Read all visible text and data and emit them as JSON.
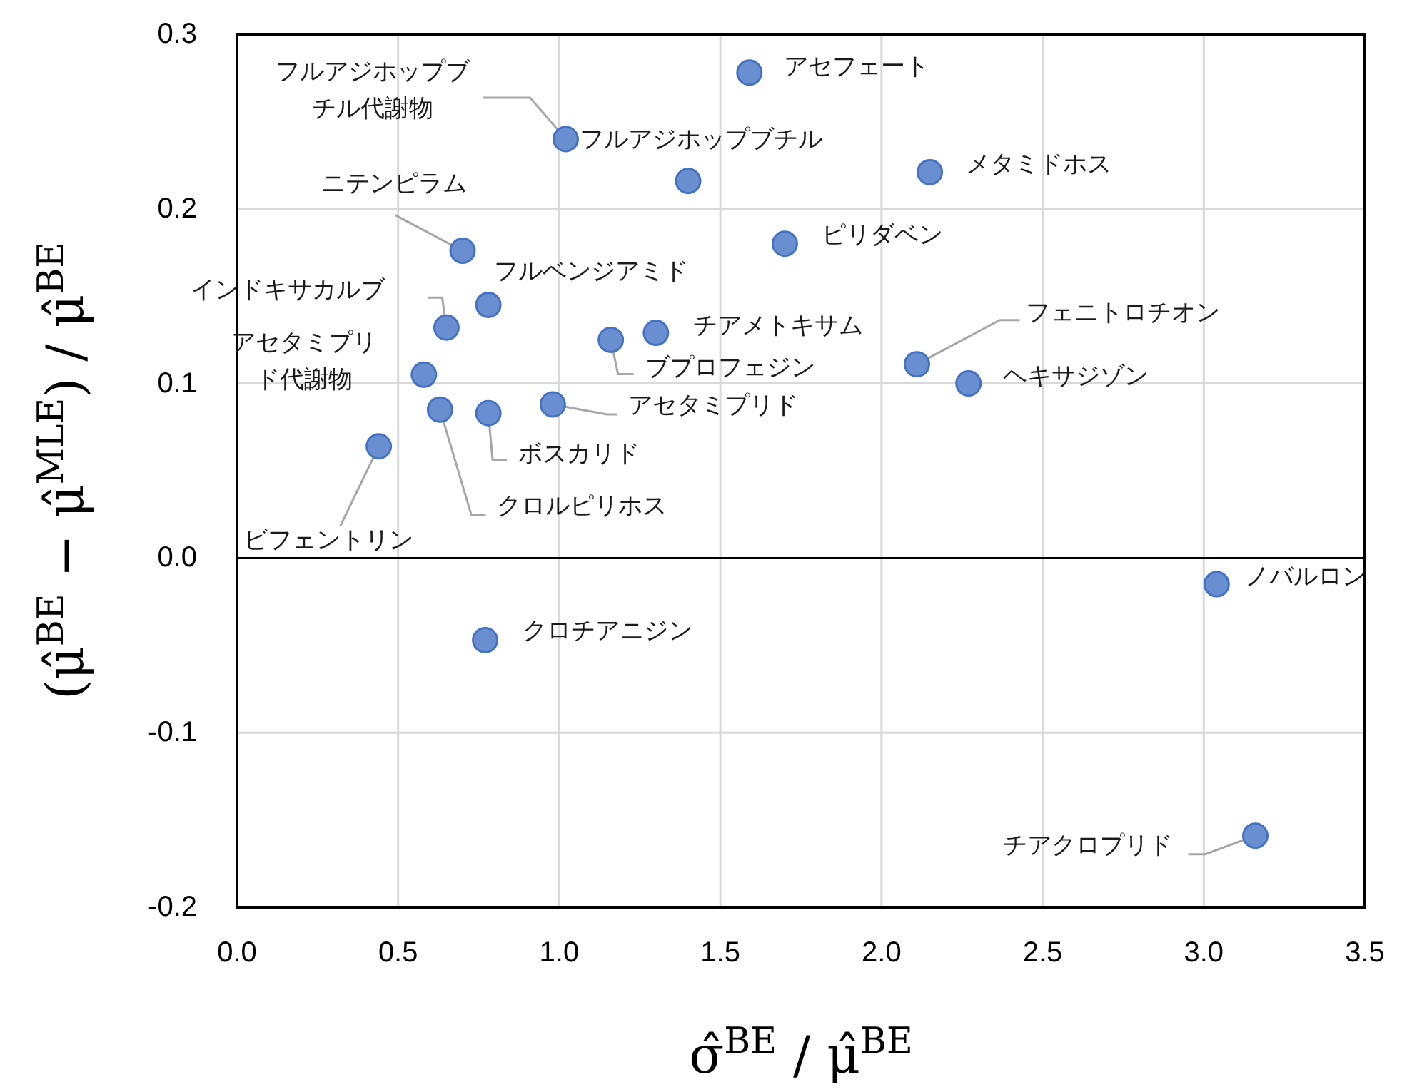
{
  "chart_data": {
    "type": "scatter",
    "xlabel": "σ̂$^{BE}$ / μ̂$^{BE}$",
    "ylabel": "(μ̂$^{BE}$ − μ̂$^{MLE}$) / μ̂$^{BE}$",
    "xlim": [
      0,
      3.5
    ],
    "xticks": [
      {
        "value": 0,
        "label": "0.0"
      },
      0.5,
      {
        "value": 1,
        "label": "1.0"
      },
      1.5,
      {
        "value": 2,
        "label": "2.0"
      },
      2.5,
      {
        "value": 3,
        "label": "3.0"
      },
      3.5
    ],
    "ylim": [
      -0.2,
      0.3
    ],
    "yticks": [
      -0.2,
      -0.1,
      {
        "value": 0,
        "label": "0.0"
      },
      0.1,
      0.2,
      0.3
    ],
    "grid": true,
    "marker": "circle",
    "series": [
      {
        "color": "#6a8fd0",
        "x": [
          1.59,
          1.02,
          1.4,
          2.15,
          1.7,
          0.7,
          0.78,
          0.65,
          1.16,
          1.3,
          2.11,
          2.27,
          0.58,
          0.63,
          0.78,
          0.98,
          0.44,
          3.04,
          0.77,
          3.16
        ],
        "values": [
          0.278,
          0.24,
          0.216,
          0.221,
          0.18,
          0.176,
          0.145,
          0.132,
          0.125,
          0.129,
          0.111,
          0.1,
          0.105,
          0.085,
          0.083,
          0.088,
          0.064,
          -0.015,
          -0.047,
          -0.159
        ]
      }
    ],
    "annotations": [
      {
        "text": "アセフェート",
        "x": 1.59,
        "y": 0.278
      },
      {
        "text": "フルアジホップブチル代謝物",
        "x": 1.02,
        "y": 0.24
      },
      {
        "text": "フルアジホップブチル",
        "x": 1.4,
        "y": 0.216
      },
      {
        "text": "メタミドホス",
        "x": 2.15,
        "y": 0.221
      },
      {
        "text": "ピリダベン",
        "x": 1.7,
        "y": 0.18
      },
      {
        "text": "ニテンピラム",
        "x": 0.7,
        "y": 0.176
      },
      {
        "text": "フルベンジアミド",
        "x": 0.78,
        "y": 0.145
      },
      {
        "text": "インドキサカルブ",
        "x": 0.65,
        "y": 0.132
      },
      {
        "text": "ブプロフェジン",
        "x": 1.16,
        "y": 0.125
      },
      {
        "text": "チアメトキサム",
        "x": 1.3,
        "y": 0.129
      },
      {
        "text": "フェニトロチオン",
        "x": 2.11,
        "y": 0.111
      },
      {
        "text": "ヘキサジゾン",
        "x": 2.27,
        "y": 0.1
      },
      {
        "text": "アセタミプリド代謝物",
        "x": 0.58,
        "y": 0.105
      },
      {
        "text": "クロルピリホス",
        "x": 0.63,
        "y": 0.085
      },
      {
        "text": "ボスカリド",
        "x": 0.78,
        "y": 0.083
      },
      {
        "text": "アセタミプリド",
        "x": 0.98,
        "y": 0.088
      },
      {
        "text": "ビフェントリン",
        "x": 0.44,
        "y": 0.064
      },
      {
        "text": "ノバルロン",
        "x": 3.04,
        "y": -0.015
      },
      {
        "text": "クロチアニジン",
        "x": 0.77,
        "y": -0.047
      },
      {
        "text": "チアクロプリド",
        "x": 3.16,
        "y": -0.159
      }
    ]
  }
}
